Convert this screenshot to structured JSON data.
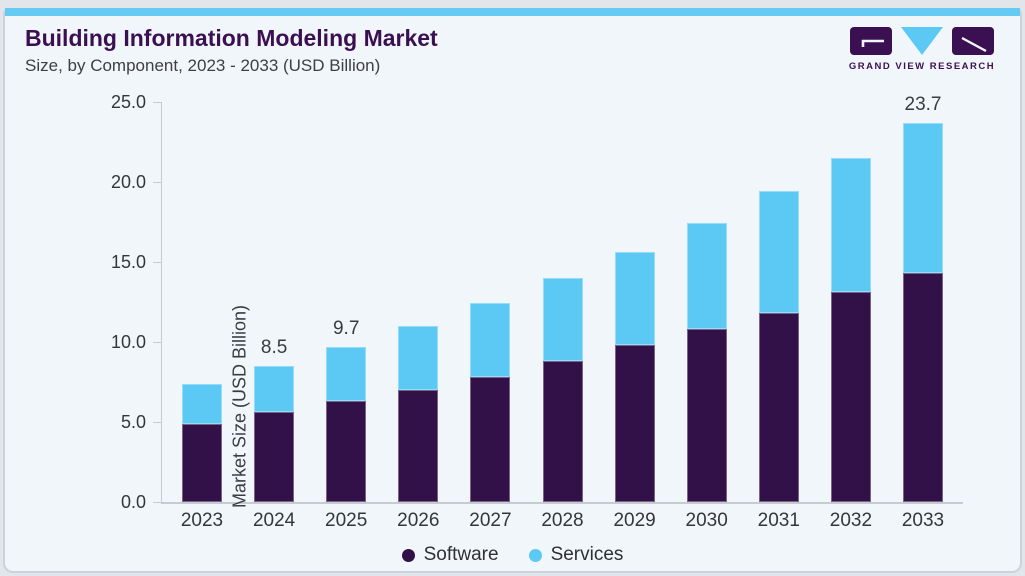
{
  "header": {
    "title": "Building Information Modeling Market",
    "subtitle": "Size, by Component, 2023 - 2033 (USD Billion)",
    "brand": {
      "name": "GRAND VIEW RESEARCH"
    }
  },
  "colors": {
    "accent_top_bar": "#65cbf2",
    "title_purple": "#3b1053",
    "software_bar": "#321149",
    "services_bar": "#5cc9f4",
    "axis_line": "#c6cad1",
    "card_background": "#f1f6fa"
  },
  "chart_data": {
    "type": "bar",
    "stacked": true,
    "title": "Building Information Modeling Market Size, by Component, 2023 - 2033 (USD Billion)",
    "categories": [
      "2023",
      "2024",
      "2025",
      "2026",
      "2027",
      "2028",
      "2029",
      "2030",
      "2031",
      "2032",
      "2033"
    ],
    "series": [
      {
        "name": "Software",
        "color": "#321149",
        "values": [
          4.9,
          5.6,
          6.3,
          7.0,
          7.8,
          8.8,
          9.8,
          10.8,
          11.8,
          13.1,
          14.3
        ]
      },
      {
        "name": "Services",
        "color": "#5cc9f4",
        "values": [
          2.5,
          2.9,
          3.4,
          4.0,
          4.6,
          5.2,
          5.8,
          6.6,
          7.6,
          8.4,
          9.4
        ]
      }
    ],
    "totals": [
      7.4,
      8.5,
      9.7,
      11.0,
      12.4,
      14.0,
      15.6,
      17.4,
      19.4,
      21.5,
      23.7
    ],
    "bar_labels": [
      "",
      "8.5",
      "9.7",
      "",
      "",
      "",
      "",
      "",
      "",
      "",
      "23.7"
    ],
    "xlabel": "",
    "ylabel": "Market Size (USD Billion)",
    "yticks": [
      "25.0",
      "20.0",
      "15.0",
      "10.0",
      "5.0",
      "0.0"
    ],
    "ylim": [
      0,
      25
    ],
    "grid": false,
    "legend": [
      "Software",
      "Services"
    ],
    "legend_position": "bottom"
  }
}
